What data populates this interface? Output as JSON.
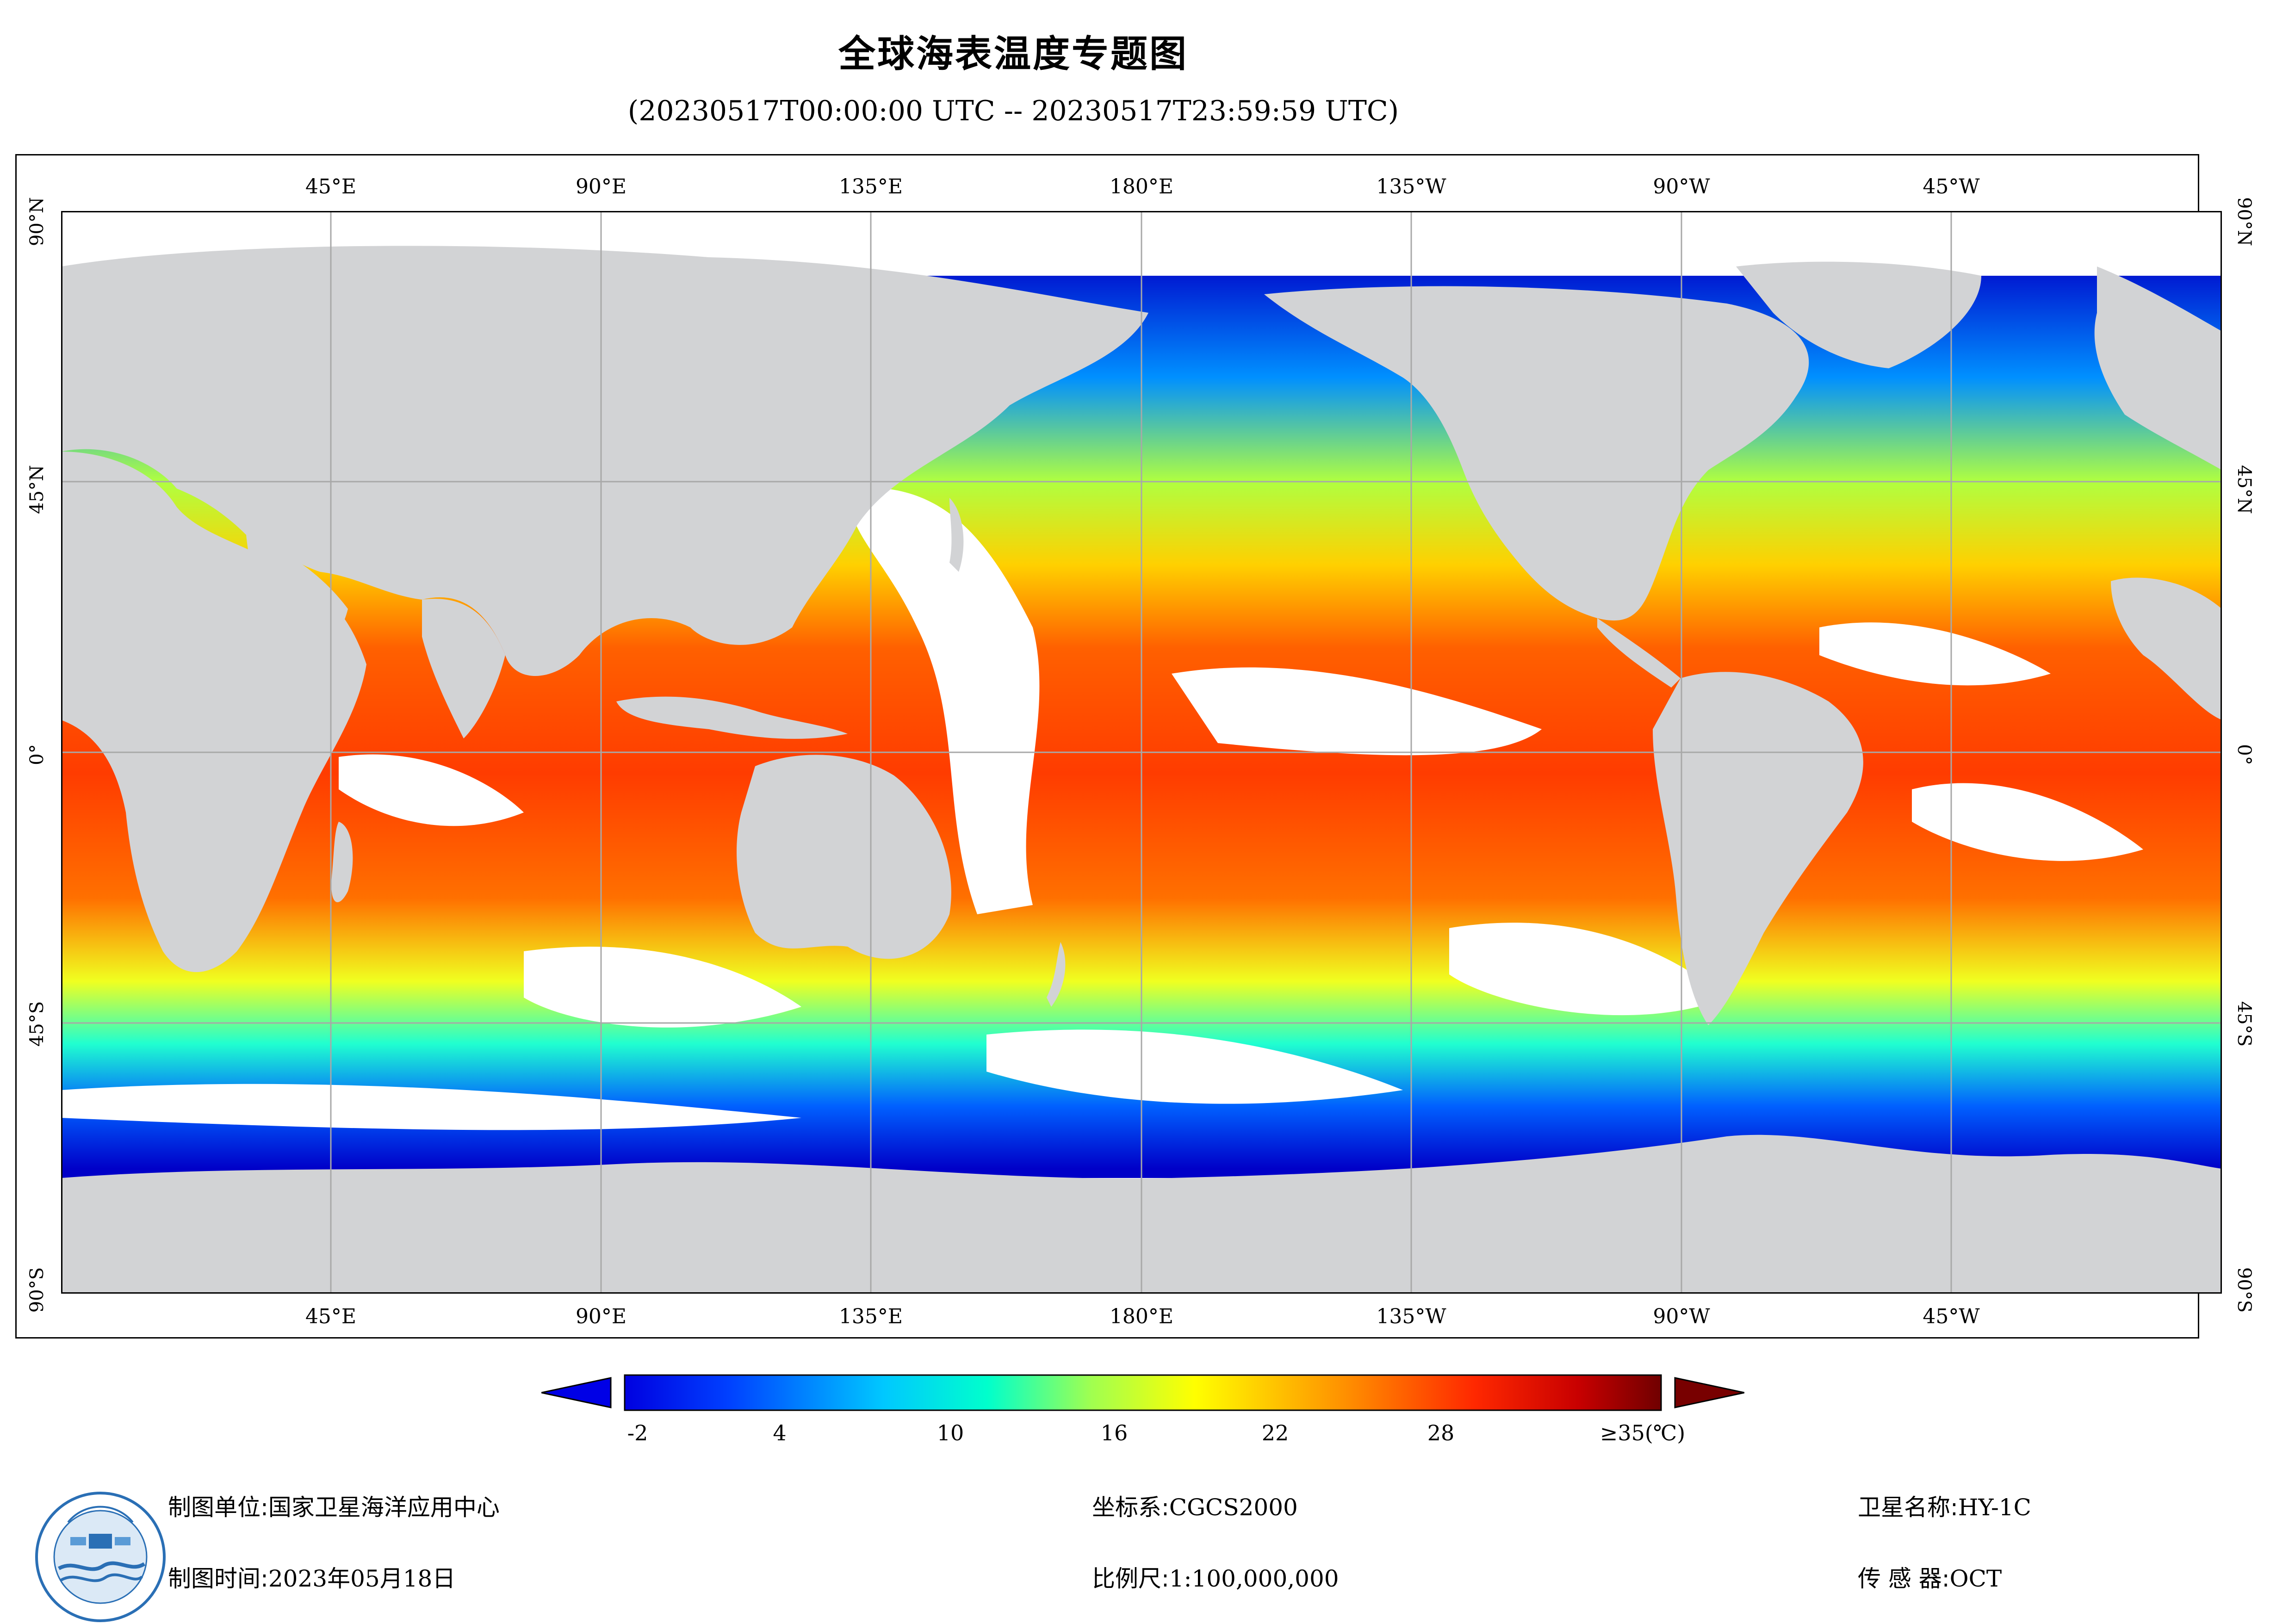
{
  "title": "全球海表温度专题图",
  "subtitle": "(20230517T00:00:00 UTC -- 20230517T23:59:59 UTC)",
  "lon_labels": [
    "45°E",
    "90°E",
    "135°E",
    "180°E",
    "135°W",
    "90°W",
    "45°W"
  ],
  "lat_labels": [
    "90°N",
    "45°N",
    "0°",
    "45°S",
    "90°S"
  ],
  "colorbar": {
    "ticks": [
      "-2",
      "4",
      "10",
      "16",
      "22",
      "28"
    ],
    "max_label": "≥35(℃)",
    "colors": [
      "#0000c8",
      "#0050ff",
      "#00b4ff",
      "#00ffd0",
      "#a0ff60",
      "#ffff00",
      "#ffa000",
      "#ff3c00",
      "#c80000",
      "#780000"
    ]
  },
  "footer": {
    "unit_key": "制图单位:",
    "unit_val": "国家卫星海洋应用中心",
    "time_key": "制图时间:",
    "time_val": "2023年05月18日",
    "crs_key": "坐标系:",
    "crs_val": "CGCS2000",
    "scale_key": "比例尺:",
    "scale_val": "1:100,000,000",
    "sat_key": "卫星名称:",
    "sat_val": "HY-1C",
    "sensor_key": "传 感 器:",
    "sensor_val": "OCT"
  }
}
